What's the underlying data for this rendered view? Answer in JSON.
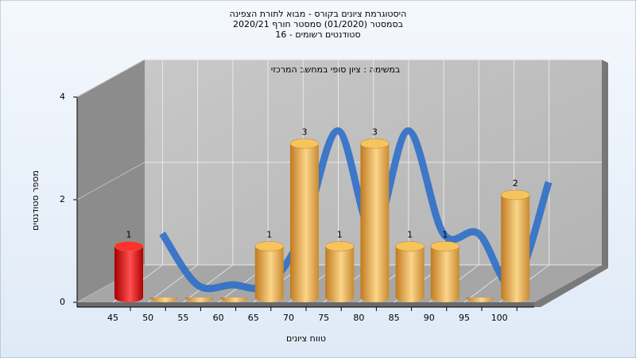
{
  "chart_data": {
    "type": "bar3d",
    "title_lines": [
      "היסטוגרמת ציונים בקורס - מבוא לתורת הצפינה",
      "בסמסטר  (01/2020)  סמסטר חורף 2020/21",
      "סטודנטים רשומים - 16"
    ],
    "annotation": "במשימה : ציון סופי במחשב המרכזי",
    "x_label": "טווח ציונים",
    "y_label": "מספר סטודנטים",
    "categories": [
      "45",
      "50",
      "55",
      "60",
      "65",
      "70",
      "75",
      "80",
      "85",
      "90",
      "95",
      "100"
    ],
    "values": [
      1,
      0,
      0,
      0,
      1,
      3,
      1,
      3,
      1,
      1,
      0,
      2
    ],
    "colors": [
      "red",
      "orange",
      "orange",
      "orange",
      "orange",
      "orange",
      "orange",
      "orange",
      "orange",
      "orange",
      "orange",
      "orange"
    ],
    "line_color": "#2f6fc8",
    "ylim": [
      0,
      4
    ],
    "yticks": [
      0,
      2,
      4
    ],
    "grid": true
  }
}
